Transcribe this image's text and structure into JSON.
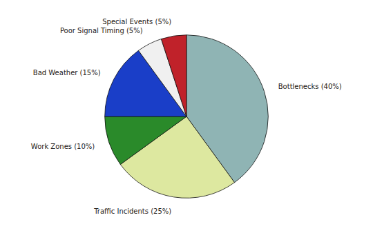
{
  "chart_data": {
    "type": "pie",
    "categories": [
      "Bottlenecks (40%)",
      "Traffic Incidents (25%)",
      "Work Zones (10%)",
      "Bad Weather (15%)",
      "Poor Signal Timing (5%)",
      "Special Events (5%)"
    ],
    "values": [
      40,
      25,
      10,
      15,
      5,
      5
    ],
    "colors": [
      "#8fb4b4",
      "#dde8a0",
      "#2a8a2a",
      "#1a3ec8",
      "#f0f0f0",
      "#c0222a"
    ]
  }
}
